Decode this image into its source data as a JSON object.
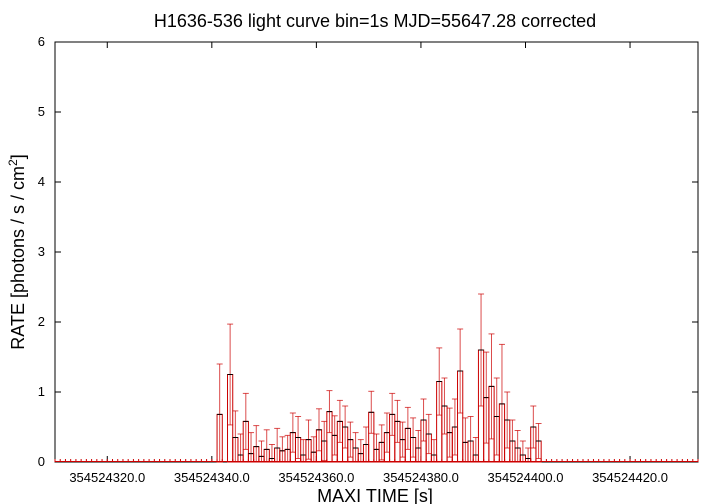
{
  "chart_data": {
    "type": "bar",
    "title": "H1636-536 light curve bin=1s MJD=55647.28 corrected",
    "xlabel": "MAXI TIME [s]",
    "ylabel": "RATE [photons / s / cm",
    "ylabel_sup": "2",
    "ylabel_end": "]",
    "xlim": [
      354524310.0,
      354524433.0
    ],
    "ylim": [
      0,
      6
    ],
    "x_ticks": [
      354524320.0,
      354524340.0,
      354524360.0,
      354524380.0,
      354524400.0,
      354524420.0
    ],
    "x_tick_labels": [
      "354524320.0",
      "354524340.0",
      "354524360.0",
      "354524380.0",
      "354524400.0",
      "354524420.0"
    ],
    "y_ticks": [
      0,
      1,
      2,
      3,
      4,
      5,
      6
    ],
    "y_tick_labels": [
      "0",
      "1",
      "2",
      "3",
      "4",
      "5",
      "6"
    ],
    "bin_width": 1,
    "grid": false,
    "color": "#cc0000",
    "series": [
      {
        "x": [
          354524341.5,
          354524343.5,
          354524344.5,
          354524345.5,
          354524346.5,
          354524347.5,
          354524348.5,
          354524349.5,
          354524350.5,
          354524351.5,
          354524352.5,
          354524353.5,
          354524354.5,
          354524355.5,
          354524356.5,
          354524357.5,
          354524358.5,
          354524359.5,
          354524360.5,
          354524361.5,
          354524362.5,
          354524363.5,
          354524364.5,
          354524365.5,
          354524366.5,
          354524367.5,
          354524368.5,
          354524369.5,
          354524370.5,
          354524371.5,
          354524372.5,
          354524373.5,
          354524374.5,
          354524375.5,
          354524376.5,
          354524377.5,
          354524378.5,
          354524379.5,
          354524380.5,
          354524381.5,
          354524382.5,
          354524383.5,
          354524384.5,
          354524385.5,
          354524386.5,
          354524387.5,
          354524388.5,
          354524389.5,
          354524390.5,
          354524391.5,
          354524392.5,
          354524393.5,
          354524394.5,
          354524395.5,
          354524396.5,
          354524397.5,
          354524398.5,
          354524399.5,
          354524400.5,
          354524401.5,
          354524402.5
        ],
        "y": [
          0.68,
          1.25,
          0.35,
          0.1,
          0.58,
          0.12,
          0.22,
          0.08,
          0.18,
          0.05,
          0.2,
          0.16,
          0.18,
          0.42,
          0.35,
          0.1,
          0.32,
          0.14,
          0.46,
          0.3,
          0.72,
          0.38,
          0.58,
          0.5,
          0.32,
          0.2,
          0.12,
          0.25,
          0.71,
          0.18,
          0.28,
          0.42,
          0.68,
          0.58,
          0.32,
          0.48,
          0.35,
          0.2,
          0.6,
          0.4,
          0.1,
          1.15,
          0.8,
          0.42,
          0.5,
          1.3,
          0.28,
          0.3,
          0.1,
          1.6,
          0.92,
          1.08,
          0.65,
          0.83,
          0.6,
          0.3,
          0.2,
          0.1,
          0.05,
          0.5,
          0.3
        ],
        "err": [
          0.72,
          0.72,
          0.38,
          0.3,
          0.4,
          0.3,
          0.3,
          0.22,
          0.28,
          0.2,
          0.28,
          0.2,
          0.2,
          0.28,
          0.3,
          0.22,
          0.28,
          0.22,
          0.3,
          0.28,
          0.3,
          0.28,
          0.3,
          0.3,
          0.25,
          0.22,
          0.2,
          0.25,
          0.3,
          0.22,
          0.25,
          0.28,
          0.3,
          0.3,
          0.25,
          0.3,
          0.28,
          0.25,
          0.3,
          0.28,
          0.22,
          0.48,
          0.4,
          0.35,
          0.4,
          0.6,
          0.35,
          0.35,
          0.25,
          0.8,
          0.65,
          0.75,
          0.55,
          0.85,
          0.4,
          0.3,
          0.25,
          0.2,
          0.15,
          0.3,
          0.25
        ]
      }
    ]
  }
}
